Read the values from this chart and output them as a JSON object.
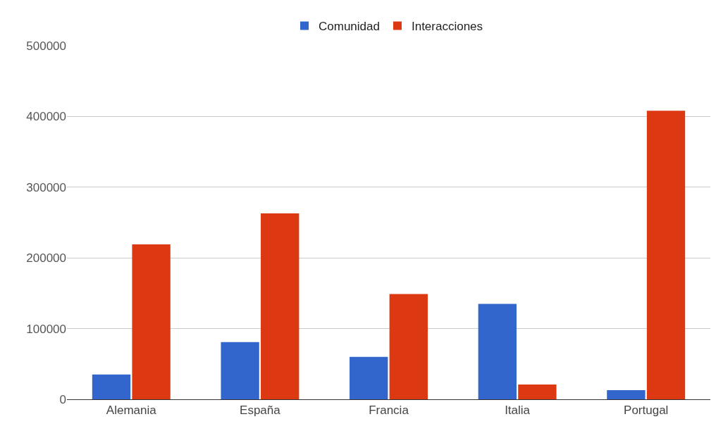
{
  "chart_data": {
    "type": "bar",
    "categories": [
      "Alemania",
      "España",
      "Francia",
      "Italia",
      "Portugal"
    ],
    "series": [
      {
        "name": "Comunidad",
        "color": "#3366cc",
        "values": [
          35000,
          81000,
          60000,
          135000,
          13000
        ]
      },
      {
        "name": "Interacciones",
        "color": "#dc3912",
        "values": [
          219000,
          263000,
          149000,
          21000,
          408000
        ]
      }
    ],
    "ylim": [
      0,
      500000
    ],
    "yticks": [
      0,
      100000,
      200000,
      300000,
      400000,
      500000
    ],
    "grid": "y",
    "legend": "top"
  }
}
